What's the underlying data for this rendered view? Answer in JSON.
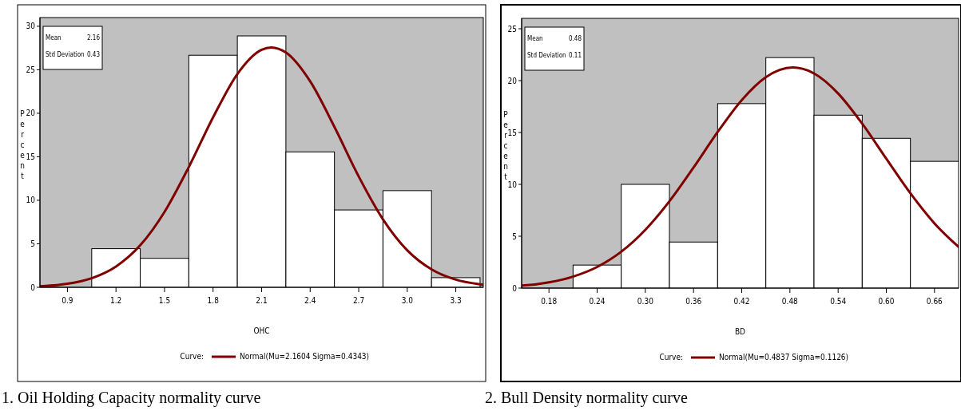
{
  "chart_data": [
    {
      "type": "histogram",
      "title": "1.    Oil Holding Capacity normality curve",
      "xlabel": "OHC",
      "ylabel": "Percent",
      "legend_title": "Curve:",
      "legend": "bottom",
      "annotations": [
        "Mean",
        "2.16",
        "Std Deviation",
        "0.43"
      ],
      "xlim": [
        0.73,
        3.47
      ],
      "ylim": [
        0,
        31
      ],
      "xticks": [
        0.9,
        1.2,
        1.5,
        1.8,
        2.1,
        2.4,
        2.7,
        {
          "value": 3,
          "label": "3.0"
        },
        3.3
      ],
      "yticks": [
        0,
        5,
        10,
        15,
        20,
        25,
        30
      ],
      "series": [
        {
          "color": "#ffffff",
          "bins": [
            1.05,
            1.35,
            1.65,
            1.95,
            2.25,
            2.55,
            2.85,
            3.15,
            3.45
          ],
          "values": [
            4.44,
            3.33,
            26.67,
            28.89,
            15.56,
            8.89,
            11.11,
            1.11
          ]
        },
        {
          "type": "line",
          "name": "Normal(Mu=2.1604 Sigma=0.4343)",
          "color": "#800000",
          "x": [
            0.73,
            0.75,
            0.9,
            1.05,
            1.2,
            1.35,
            1.5,
            1.65,
            1.8,
            1.95,
            2.1,
            2.16,
            2.25,
            2.4,
            2.55,
            2.7,
            2.85,
            3.0,
            3.15,
            3.3,
            3.45,
            3.47
          ],
          "values": [
            0.12,
            0.14,
            0.41,
            1.05,
            2.39,
            4.83,
            8.67,
            13.82,
            19.53,
            24.51,
            27.3,
            27.56,
            26.98,
            23.67,
            18.43,
            12.74,
            7.81,
            4.25,
            2.06,
            0.88,
            0.34,
            0.29
          ]
        }
      ]
    },
    {
      "type": "histogram",
      "title": "2.    Bull Density normality curve",
      "xlabel": "BD",
      "ylabel": "Percent",
      "legend_title": "Curve:",
      "legend": "bottom",
      "annotations": [
        "Mean",
        "0.48",
        "Std Deviation",
        "0.11"
      ],
      "xlim": [
        0.146,
        0.69
      ],
      "ylim": [
        0,
        26
      ],
      "xticks": [
        0.18,
        0.24,
        {
          "value": 0.3,
          "label": "0.30"
        },
        0.36,
        0.42,
        0.48,
        0.54,
        {
          "value": 0.6,
          "label": "0.60"
        },
        0.66
      ],
      "yticks": [
        0,
        5,
        10,
        15,
        20,
        25
      ],
      "series": [
        {
          "color": "#ffffff",
          "bins": [
            0.21,
            0.27,
            0.33,
            0.39,
            0.45,
            0.51,
            0.57,
            0.63,
            0.69
          ],
          "values": [
            2.22,
            10,
            4.44,
            17.78,
            22.22,
            16.67,
            14.44,
            12.22
          ]
        },
        {
          "type": "line",
          "name": "Normal(Mu=0.4837 Sigma=0.1126)",
          "color": "#800000",
          "x": [
            0.146,
            0.15,
            0.18,
            0.21,
            0.24,
            0.27,
            0.3,
            0.33,
            0.36,
            0.39,
            0.42,
            0.45,
            0.4837,
            0.51,
            0.54,
            0.57,
            0.6,
            0.63,
            0.66,
            0.69
          ],
          "values": [
            0.24,
            0.26,
            0.56,
            1.11,
            2.04,
            3.51,
            5.62,
            8.37,
            11.62,
            15.04,
            18.12,
            20.33,
            21.26,
            20.69,
            18.76,
            15.85,
            12.47,
            9.14,
            6.24,
            3.97
          ]
        }
      ]
    }
  ]
}
